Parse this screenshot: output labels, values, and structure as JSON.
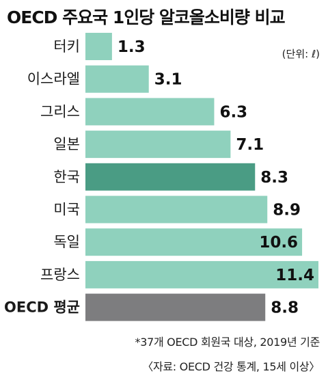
{
  "title": "OECD 주요국 1인당 알코올소비량 비교",
  "unit": "(단위: ℓ)",
  "note": "*37개 OECD 회원국 대상, 2019년 기준",
  "source": "〈자료: OECD 건강 통계, 15세 이상〉",
  "colors": {
    "default_bar": "#8fd1bd",
    "highlight_bar": "#4a9c84",
    "average_bar": "#7d7d7f"
  },
  "chart_data": {
    "type": "bar",
    "orientation": "horizontal",
    "title": "OECD 주요국 1인당 알코올소비량 비교",
    "unit": "ℓ",
    "categories": [
      "터키",
      "이스라엘",
      "그리스",
      "일본",
      "한국",
      "미국",
      "독일",
      "프랑스",
      "OECD 평균"
    ],
    "values": [
      1.3,
      3.1,
      6.3,
      7.1,
      8.3,
      8.9,
      10.6,
      11.4,
      8.8
    ],
    "value_labels": [
      "1.3",
      "3.1",
      "6.3",
      "7.1",
      "8.3",
      "8.9",
      "10.6",
      "11.4",
      "8.8"
    ],
    "highlight": [
      "default",
      "default",
      "default",
      "default",
      "highlight",
      "default",
      "default",
      "default",
      "average"
    ],
    "xlim": [
      0,
      11.4
    ],
    "grid": false,
    "legend": "none"
  }
}
